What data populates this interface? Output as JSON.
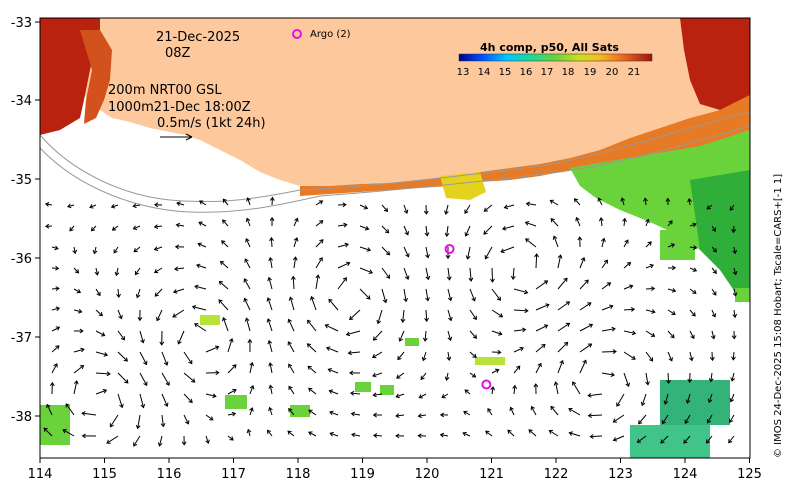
{
  "map": {
    "date_line": "21-Dec-2025",
    "hour_line": "08Z",
    "contours_line": "200m  NRT00 GSL",
    "contours_line2": "1000m21-Dec 18:00Z",
    "scale_arrow_label": "0.5m/s (1kt 24h)",
    "argo_label": "Argo (2)",
    "credit": "© IMOS 24-Dec-2025 15:08 Hobart; Tscale=CARS+[-1 1]",
    "colorbar": {
      "title": "4h comp, p50, All Sats",
      "ticks": [
        "13",
        "14",
        "15",
        "16",
        "17",
        "18",
        "19",
        "20",
        "21"
      ]
    },
    "x_axis": {
      "ticks": [
        "114",
        "115",
        "116",
        "117",
        "118",
        "119",
        "120",
        "121",
        "122",
        "123",
        "124",
        "125"
      ]
    },
    "y_axis": {
      "ticks": [
        "-33",
        "-34",
        "-35",
        "-36",
        "-37",
        "-38"
      ]
    },
    "argo_floats": [
      {
        "lon": 120.35,
        "lat": -35.88
      },
      {
        "lon": 120.92,
        "lat": -37.6
      }
    ],
    "colors": {
      "land": "#fdc89c",
      "argo": "#e60fe6",
      "sst_warm": "#b8220e",
      "sst_mid": "#f5a024",
      "sst_cool": "#6ad23a"
    }
  }
}
